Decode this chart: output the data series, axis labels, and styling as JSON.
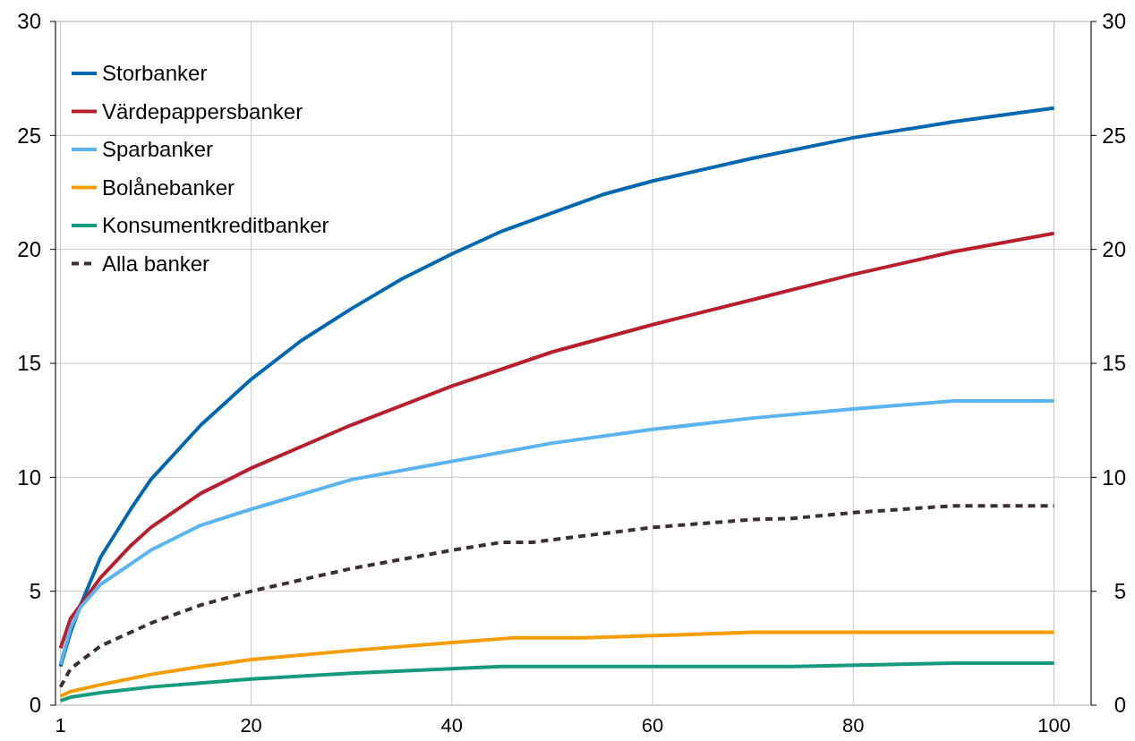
{
  "chart_data": {
    "type": "line",
    "xlim": [
      0.5,
      103.7
    ],
    "xticks": [
      1,
      20,
      40,
      60,
      80,
      100
    ],
    "ylim": [
      0,
      30
    ],
    "yticks": [
      0,
      5,
      10,
      15,
      20,
      25,
      30
    ],
    "y2lim": [
      0,
      30
    ],
    "y2ticks": [
      0,
      5,
      10,
      15,
      20,
      25,
      30
    ],
    "grid": true,
    "legend": "top left",
    "series": [
      {
        "name": "Storbanker",
        "color": "#0068b1",
        "x": [
          1,
          2,
          3,
          5,
          8,
          10,
          15,
          20,
          25,
          30,
          35,
          40,
          45,
          50,
          55,
          60,
          70,
          80,
          90,
          100
        ],
        "values": [
          1.7,
          3.2,
          4.4,
          6.5,
          8.6,
          9.9,
          12.3,
          14.3,
          16.0,
          17.4,
          18.7,
          19.8,
          20.8,
          21.6,
          22.4,
          23.0,
          24.0,
          24.9,
          25.6,
          26.2
        ]
      },
      {
        "name": "Värdepappersbanker",
        "color": "#b81f2c",
        "x": [
          1,
          2,
          3,
          5,
          8,
          10,
          15,
          20,
          30,
          40,
          50,
          60,
          70,
          80,
          90,
          100
        ],
        "values": [
          2.5,
          3.8,
          4.4,
          5.6,
          7.0,
          7.8,
          9.3,
          10.4,
          12.3,
          14.0,
          15.5,
          16.7,
          17.8,
          18.9,
          19.9,
          20.7
        ]
      },
      {
        "name": "Sparbanker",
        "color": "#5bb4f0",
        "x": [
          1,
          2,
          3,
          5,
          8,
          10,
          15,
          20,
          30,
          40,
          50,
          60,
          70,
          80,
          90,
          100
        ],
        "values": [
          1.8,
          3.4,
          4.3,
          5.3,
          6.2,
          6.8,
          7.9,
          8.6,
          9.9,
          10.7,
          11.5,
          12.1,
          12.6,
          13.0,
          13.35,
          13.35
        ]
      },
      {
        "name": "Bolånebanker",
        "color": "#f59c00",
        "x": [
          1,
          2,
          5,
          10,
          15,
          20,
          30,
          40,
          46,
          53,
          60,
          70,
          100
        ],
        "values": [
          0.4,
          0.6,
          0.9,
          1.35,
          1.7,
          2.0,
          2.4,
          2.75,
          2.95,
          2.95,
          3.05,
          3.2,
          3.2
        ]
      },
      {
        "name": "Konsumentkreditbanker",
        "color": "#139a7f",
        "x": [
          1,
          2,
          5,
          10,
          20,
          30,
          40,
          45,
          74,
          90,
          100
        ],
        "values": [
          0.2,
          0.35,
          0.55,
          0.8,
          1.15,
          1.4,
          1.6,
          1.7,
          1.7,
          1.85,
          1.85
        ]
      },
      {
        "name": "Alla banker",
        "color": "#3c2f30",
        "line_style": "dashed",
        "x": [
          1,
          2,
          5,
          10,
          15,
          20,
          30,
          40,
          45,
          48,
          60,
          70,
          74,
          80,
          90,
          100
        ],
        "values": [
          0.8,
          1.6,
          2.6,
          3.6,
          4.4,
          5.0,
          6.0,
          6.8,
          7.15,
          7.15,
          7.8,
          8.15,
          8.2,
          8.45,
          8.75,
          8.75
        ]
      }
    ]
  }
}
